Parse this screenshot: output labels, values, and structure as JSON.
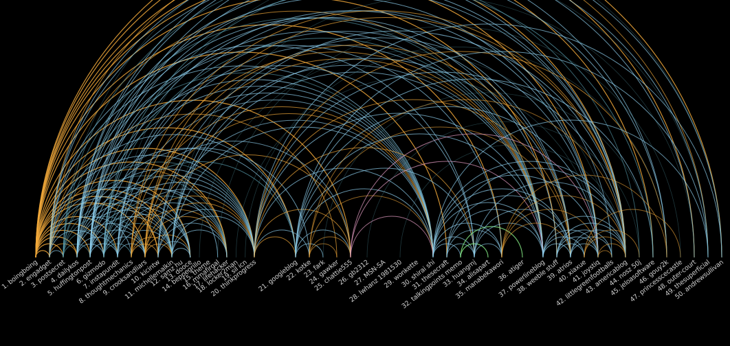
{
  "diagram": {
    "type": "arc-diagram",
    "background": "#000000",
    "palette": {
      "orange": "#f2a93b",
      "blue": "#8fd0f0",
      "teal": "#5aa0b0",
      "pink": "#e8a0c8",
      "green": "#7fe07f"
    },
    "nodes": [
      "1. boingboing",
      "2. engadget",
      "3. postsecret",
      "4. dailykos",
      "5. huffingtonpost",
      "6. gizmodo",
      "7. instapundit",
      "8. thoughtmechanics",
      "9. crooksandliars",
      "10. kicintw",
      "11. michellemalkin",
      "12. samz hu",
      "13. dooce",
      "14. beppegrillo",
      "15. theme",
      "16. mmafirgal",
      "17. lifehacker",
      "18. locker2man",
      "19. sil icn",
      "20. thinkprogress",
      "21. googleblog",
      "22. kotke",
      "23. fark",
      "24. gawker",
      "25. chattie555",
      "26. gb2312",
      "27. MSN-SA",
      "28. lwhanz 1981530",
      "29. wonkette",
      "30. shirai shi",
      "31. thesecraft",
      "32. talkingpoints memo",
      "33. huangmj",
      "34. alisapart",
      "35. manabekawori",
      "36. atiger",
      "37. powerlineblog",
      "38. weeble stuff",
      "39. atrios",
      "40. xiaxue",
      "41. joystiq",
      "42. littlegreenfootballs",
      "43. americablog",
      "44. nosz 50j",
      "45. jeloasoftware",
      "46. gouy2k",
      "47. princesscecastle",
      "48. outer-court",
      "49. thesuperficial",
      "50. andrewsullivan"
    ]
  }
}
